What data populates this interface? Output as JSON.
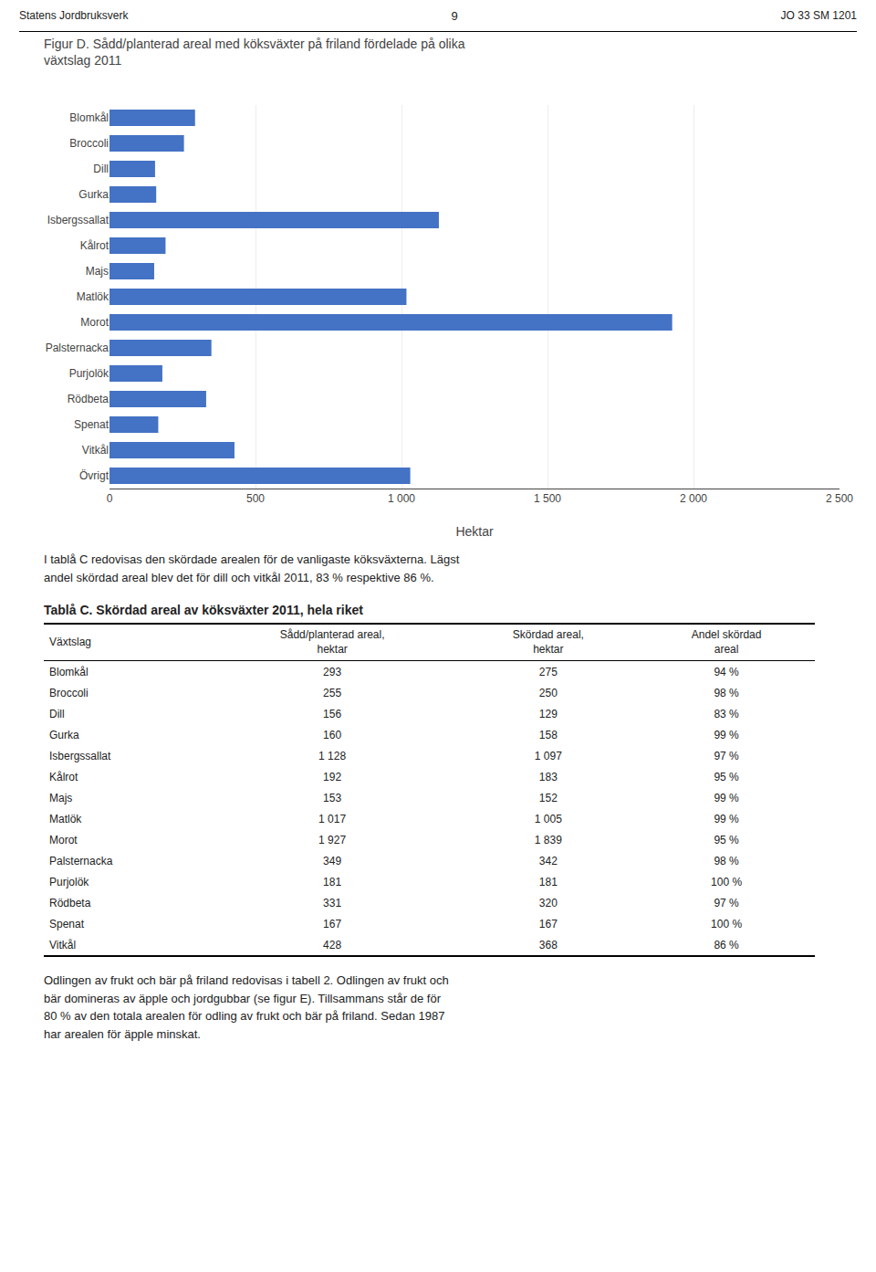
{
  "header": [
    "Statens Jordbruksverk",
    "9",
    "JO 33 SM 1201"
  ],
  "chart_data": {
    "type": "bar",
    "orientation": "horizontal",
    "title": "Figur D. Sådd/planterad areal med köksväxter på friland fördelade på olika\nväxtslag 2011",
    "categories": [
      "Blomkål",
      "Broccoli",
      "Dill",
      "Gurka",
      "Isbergssallat",
      "Kålrot",
      "Majs",
      "Matlök",
      "Morot",
      "Palsternacka",
      "Purjolök",
      "Rödbeta",
      "Spenat",
      "Vitkål",
      "Övrigt"
    ],
    "values": [
      293,
      255,
      156,
      160,
      1128,
      192,
      153,
      1017,
      1927,
      349,
      181,
      331,
      167,
      428,
      1030
    ],
    "color": "#4472C4",
    "xlabel": "Hektar",
    "xlim": [
      0,
      2500
    ],
    "xticks": [
      0,
      500,
      {
        "value": 1000,
        "label": "1 000"
      },
      {
        "value": 1500,
        "label": "1 500"
      },
      {
        "value": 2000,
        "label": "2 000"
      },
      {
        "value": 2500,
        "label": "2 500"
      }
    ],
    "grid": true
  },
  "paragraph": "I tablå C redovisas den skördade arealen för de vanligaste köksväxterna. Lägst\nandel skördad areal blev det för dill och vitkål 2011, 83 % respektive 86 %.",
  "table": {
    "title": "Tablå C. Skördad areal av köksväxter 2011, hela riket",
    "columns": [
      "Växtslag",
      "Sådd/planterad areal,\nhektar",
      "Skördad areal,\nhektar",
      "Andel skördad\nareal"
    ],
    "rows": [
      [
        "Blomkål",
        "293",
        "275",
        "94 %"
      ],
      [
        "Broccoli",
        "255",
        "250",
        "98 %"
      ],
      [
        "Dill",
        "156",
        "129",
        "83 %"
      ],
      [
        "Gurka",
        "160",
        "158",
        "99 %"
      ],
      [
        "Isbergssallat",
        "1 128",
        "1 097",
        "97 %"
      ],
      [
        "Kålrot",
        "192",
        "183",
        "95 %"
      ],
      [
        "Majs",
        "153",
        "152",
        "99 %"
      ],
      [
        "Matlök",
        "1 017",
        "1 005",
        "99 %"
      ],
      [
        "Morot",
        "1 927",
        "1 839",
        "95 %"
      ],
      [
        "Palsternacka",
        "349",
        "342",
        "98 %"
      ],
      [
        "Purjolök",
        "181",
        "181",
        "100 %"
      ],
      [
        "Rödbeta",
        "331",
        "320",
        "97 %"
      ],
      [
        "Spenat",
        "167",
        "167",
        "100 %"
      ],
      [
        "Vitkål",
        "428",
        "368",
        "86 %"
      ]
    ]
  },
  "footer": "Odlingen av frukt och bär på friland redovisas i tabell 2. Odlingen av frukt och\nbär domineras av äpple och jordgubbar (se figur E). Tillsammans står de för\n80 % av den totala arealen för odling av frukt och bär på friland. Sedan 1987\nhar arealen för äpple minskat."
}
